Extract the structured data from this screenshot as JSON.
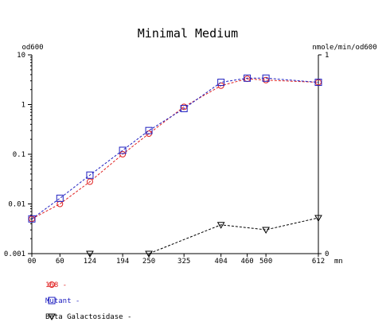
{
  "chart_data": {
    "type": "line",
    "title": "Minimal Medium",
    "left_axis_label": "od600",
    "right_axis_label": "nmole/min/od600",
    "x_unit": "mn",
    "x_ticks": [
      0,
      60,
      124,
      194,
      250,
      325,
      404,
      460,
      500,
      612
    ],
    "x_tick_labels": [
      "00",
      "60",
      "124",
      "194",
      "250",
      "325",
      "404",
      "460",
      "500",
      "612"
    ],
    "xlim": [
      0,
      612
    ],
    "y_left": {
      "scale": "log",
      "ylim": [
        0.001,
        10
      ],
      "ticks": [
        0.001,
        0.01,
        0.1,
        1,
        10
      ],
      "tick_labels": [
        "0.001",
        "0.01",
        "0.1",
        "1",
        "10"
      ]
    },
    "y_right": {
      "scale": "linear",
      "ylim": [
        0,
        1
      ],
      "ticks": [
        0,
        1
      ],
      "tick_labels": [
        "0",
        "1"
      ]
    },
    "grid": false,
    "legend_position": "bottom-left",
    "series": [
      {
        "name": "168",
        "axis": "left",
        "marker": "circle",
        "color": "#e02020",
        "legend_text": "- 168 -",
        "x": [
          0,
          60,
          124,
          194,
          250,
          325,
          404,
          460,
          500,
          612
        ],
        "y": [
          0.005,
          0.01,
          0.028,
          0.1,
          0.26,
          0.9,
          2.4,
          3.3,
          3.1,
          2.8
        ]
      },
      {
        "name": "Mutant",
        "axis": "left",
        "marker": "square",
        "color": "#2020c0",
        "legend_text": "- Mutant -",
        "x": [
          0,
          60,
          124,
          194,
          250,
          325,
          404,
          460,
          500,
          612
        ],
        "y": [
          0.005,
          0.013,
          0.038,
          0.12,
          0.3,
          0.83,
          2.8,
          3.4,
          3.4,
          2.8
        ]
      },
      {
        "name": "Beta Galactosidase",
        "axis": "right",
        "marker": "triangle-down",
        "color": "#000000",
        "legend_text": "- Beta Galactosidase -",
        "x": [
          124,
          250,
          404,
          500,
          612
        ],
        "y": [
          0.0,
          0.0,
          0.145,
          0.12,
          0.18
        ]
      }
    ]
  }
}
